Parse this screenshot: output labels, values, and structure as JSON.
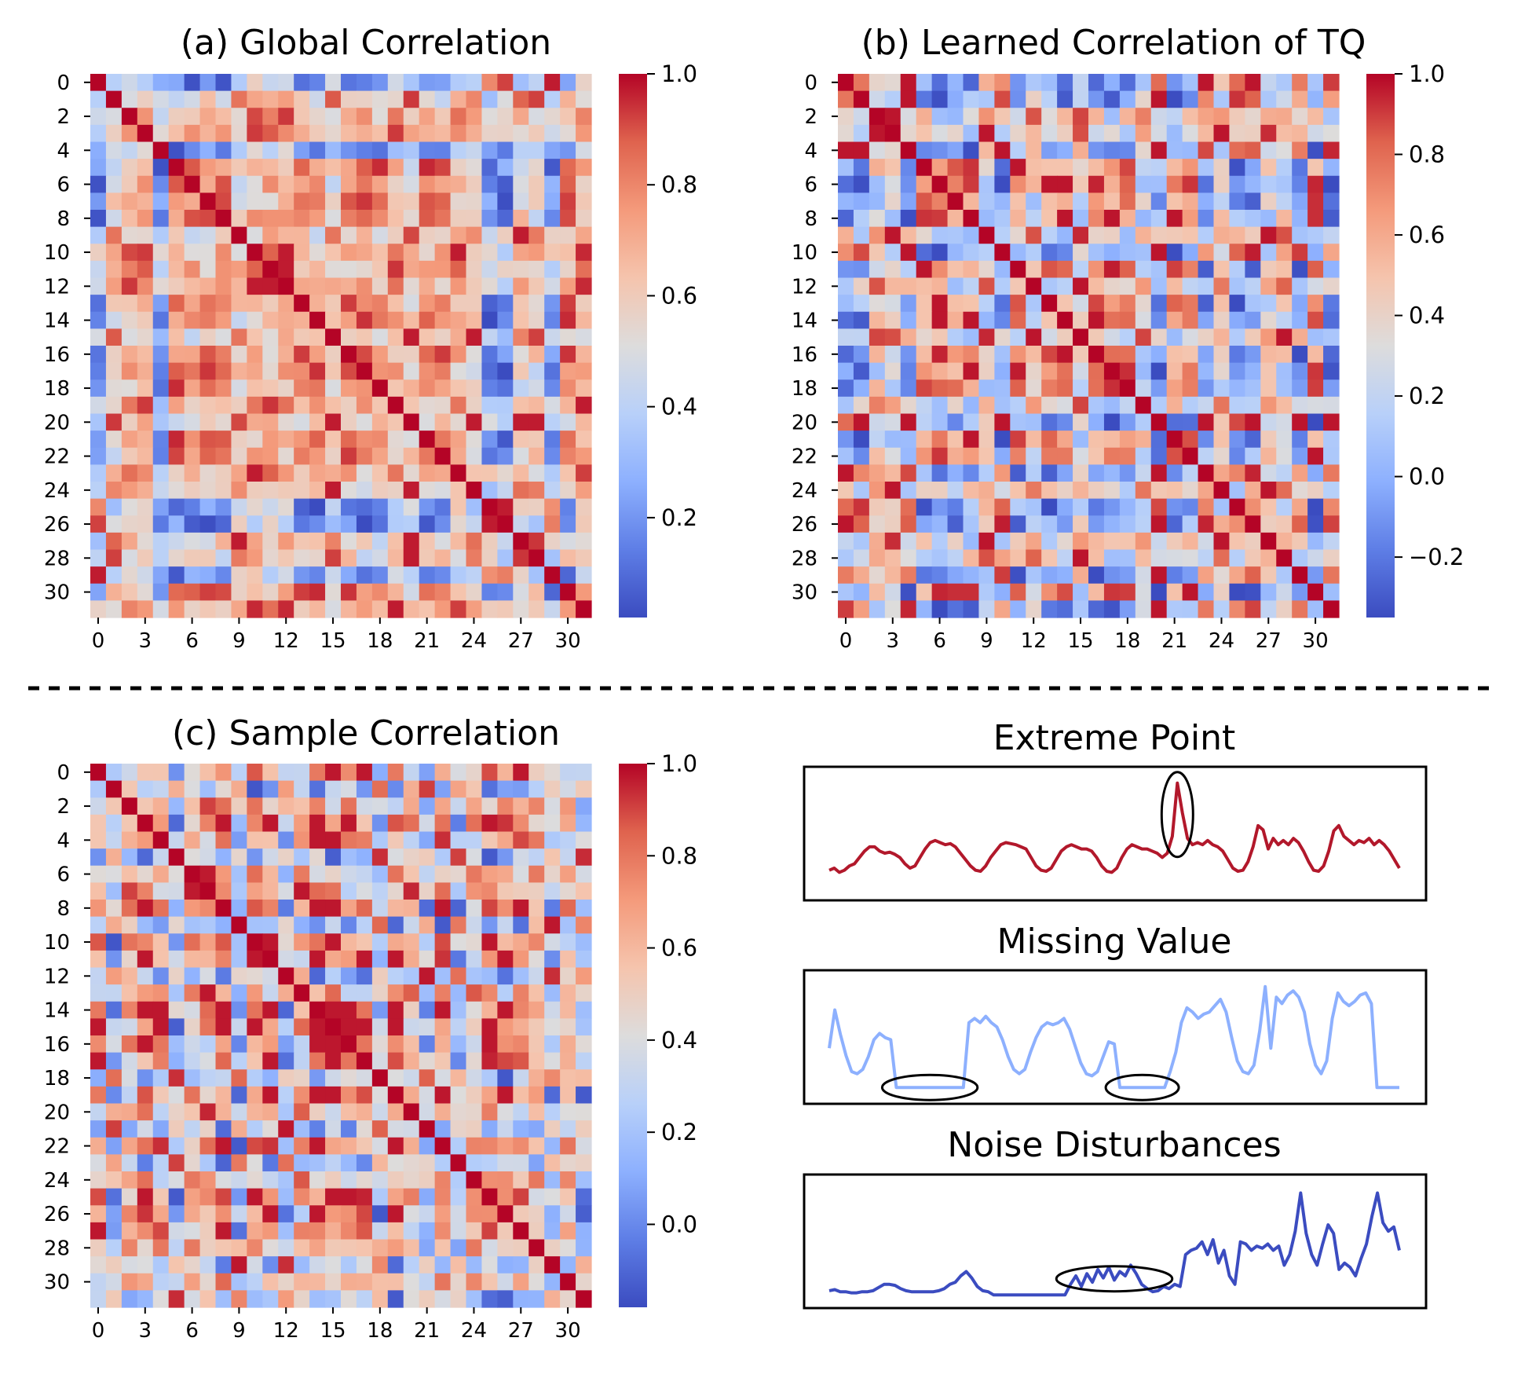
{
  "chart_data": [
    {
      "type": "heatmap",
      "title": "(a) Global Correlation",
      "size": 32,
      "x_ticks": [
        "0",
        "3",
        "6",
        "9",
        "12",
        "15",
        "18",
        "21",
        "24",
        "27",
        "30"
      ],
      "y_ticks": [
        "0",
        "2",
        "4",
        "6",
        "8",
        "10",
        "12",
        "14",
        "16",
        "18",
        "20",
        "22",
        "24",
        "26",
        "28",
        "30"
      ],
      "colormap": "coolwarm",
      "vmin": 0.02,
      "vmax": 1.0,
      "colorbar_ticks": [
        "1.0",
        "0.8",
        "0.6",
        "0.4",
        "0.2"
      ],
      "colorbar_tick_values": [
        1.0,
        0.8,
        0.6,
        0.4,
        0.2
      ],
      "diagonal": 1.0,
      "pattern": "block",
      "groups": [
        0,
        1,
        2,
        2,
        3,
        4,
        4,
        4,
        4,
        1,
        2,
        2,
        2,
        4,
        4,
        1,
        4,
        4,
        4,
        2,
        1,
        4,
        4,
        2,
        1,
        0,
        0,
        1,
        1,
        0,
        4,
        2
      ],
      "group_levels": [
        [
          0.9,
          0.45,
          0.5,
          0.2,
          0.15
        ],
        [
          0.45,
          0.9,
          0.62,
          0.4,
          0.55
        ],
        [
          0.5,
          0.62,
          0.9,
          0.42,
          0.65
        ],
        [
          0.2,
          0.4,
          0.42,
          0.9,
          0.15
        ],
        [
          0.15,
          0.55,
          0.65,
          0.15,
          0.82
        ]
      ],
      "noise": 0.14,
      "seed": 11
    },
    {
      "type": "heatmap",
      "title": "(b) Learned Correlation of TQ",
      "size": 32,
      "x_ticks": [
        "0",
        "3",
        "6",
        "9",
        "12",
        "15",
        "18",
        "21",
        "24",
        "27",
        "30"
      ],
      "y_ticks": [
        "0",
        "2",
        "4",
        "6",
        "8",
        "10",
        "12",
        "14",
        "16",
        "18",
        "20",
        "22",
        "24",
        "26",
        "28",
        "30"
      ],
      "colormap": "coolwarm",
      "vmin": -0.35,
      "vmax": 1.0,
      "colorbar_ticks": [
        "1.0",
        "0.8",
        "0.6",
        "0.4",
        "0.2",
        "0.0",
        "−0.2"
      ],
      "colorbar_tick_values": [
        1.0,
        0.8,
        0.6,
        0.4,
        0.2,
        0.0,
        -0.2
      ],
      "diagonal": 1.0,
      "pattern": "block",
      "groups": [
        0,
        0,
        1,
        1,
        0,
        2,
        2,
        2,
        2,
        1,
        0,
        2,
        1,
        2,
        2,
        1,
        2,
        2,
        2,
        1,
        0,
        2,
        2,
        0,
        1,
        0,
        0,
        1,
        1,
        0,
        2,
        0
      ],
      "group_levels": [
        [
          0.85,
          0.35,
          -0.1
        ],
        [
          0.35,
          0.8,
          0.3
        ],
        [
          -0.1,
          0.3,
          0.75
        ]
      ],
      "noise": 0.28,
      "seed": 23
    },
    {
      "type": "heatmap",
      "title": "(c) Sample Correlation",
      "size": 32,
      "x_ticks": [
        "0",
        "3",
        "6",
        "9",
        "12",
        "15",
        "18",
        "21",
        "24",
        "27",
        "30"
      ],
      "y_ticks": [
        "0",
        "2",
        "4",
        "6",
        "8",
        "10",
        "12",
        "14",
        "16",
        "18",
        "20",
        "22",
        "24",
        "26",
        "28",
        "30"
      ],
      "colormap": "coolwarm",
      "vmin": -0.18,
      "vmax": 1.0,
      "colorbar_ticks": [
        "1.0",
        "0.8",
        "0.6",
        "0.4",
        "0.2",
        "0.0"
      ],
      "colorbar_tick_values": [
        1.0,
        0.8,
        0.6,
        0.4,
        0.2,
        0.0
      ],
      "diagonal": 1.0,
      "pattern": "block",
      "groups": [
        0,
        1,
        2,
        0,
        0,
        1,
        2,
        2,
        0,
        1,
        0,
        0,
        1,
        2,
        0,
        0,
        0,
        0,
        1,
        0,
        2,
        1,
        0,
        1,
        2,
        0,
        0,
        0,
        2,
        1,
        2,
        1
      ],
      "group_levels": [
        [
          0.82,
          0.15,
          0.55
        ],
        [
          0.15,
          0.75,
          0.35
        ],
        [
          0.55,
          0.35,
          0.7
        ]
      ],
      "noise": 0.3,
      "seed": 37
    },
    {
      "type": "line",
      "title": "Extreme Point",
      "color": "#b2182b",
      "y": [
        0.18,
        0.2,
        0.16,
        0.18,
        0.22,
        0.24,
        0.3,
        0.36,
        0.4,
        0.4,
        0.36,
        0.34,
        0.35,
        0.33,
        0.3,
        0.24,
        0.2,
        0.22,
        0.3,
        0.38,
        0.44,
        0.46,
        0.44,
        0.42,
        0.43,
        0.4,
        0.34,
        0.28,
        0.22,
        0.18,
        0.17,
        0.22,
        0.3,
        0.36,
        0.42,
        0.44,
        0.43,
        0.42,
        0.4,
        0.38,
        0.3,
        0.22,
        0.18,
        0.17,
        0.2,
        0.28,
        0.36,
        0.4,
        0.42,
        0.4,
        0.38,
        0.38,
        0.36,
        0.3,
        0.22,
        0.17,
        0.16,
        0.2,
        0.3,
        0.38,
        0.42,
        0.4,
        0.38,
        0.38,
        0.36,
        0.34,
        0.3,
        0.34,
        0.5,
        1.0,
        0.72,
        0.48,
        0.42,
        0.44,
        0.42,
        0.46,
        0.42,
        0.4,
        0.36,
        0.28,
        0.2,
        0.17,
        0.18,
        0.26,
        0.4,
        0.6,
        0.56,
        0.38,
        0.48,
        0.42,
        0.46,
        0.42,
        0.48,
        0.44,
        0.36,
        0.26,
        0.18,
        0.17,
        0.22,
        0.36,
        0.55,
        0.6,
        0.5,
        0.46,
        0.42,
        0.46,
        0.44,
        0.48,
        0.42,
        0.46,
        0.42,
        0.36,
        0.28,
        0.2
      ],
      "ylim": [
        0,
        1.05
      ],
      "annotation": {
        "shape": "ellipse",
        "at_index": 69
      }
    },
    {
      "type": "line",
      "title": "Missing Value",
      "color": "#8db0fe",
      "y": [
        0.42,
        0.78,
        0.55,
        0.35,
        0.2,
        0.18,
        0.22,
        0.34,
        0.5,
        0.56,
        0.52,
        0.5,
        0.05,
        0.05,
        0.05,
        0.05,
        0.05,
        0.05,
        0.05,
        0.05,
        0.05,
        0.05,
        0.05,
        0.05,
        0.05,
        0.66,
        0.7,
        0.66,
        0.72,
        0.66,
        0.62,
        0.5,
        0.34,
        0.22,
        0.18,
        0.22,
        0.38,
        0.52,
        0.62,
        0.66,
        0.64,
        0.66,
        0.7,
        0.6,
        0.44,
        0.28,
        0.18,
        0.16,
        0.2,
        0.34,
        0.48,
        0.46,
        0.05,
        0.05,
        0.05,
        0.05,
        0.05,
        0.05,
        0.05,
        0.05,
        0.05,
        0.2,
        0.38,
        0.66,
        0.8,
        0.76,
        0.7,
        0.74,
        0.76,
        0.82,
        0.88,
        0.76,
        0.52,
        0.3,
        0.2,
        0.18,
        0.26,
        0.58,
        1.0,
        0.42,
        0.9,
        0.84,
        0.92,
        0.96,
        0.9,
        0.76,
        0.46,
        0.26,
        0.18,
        0.3,
        0.7,
        0.94,
        0.86,
        0.82,
        0.86,
        0.92,
        0.94,
        0.84,
        0.05,
        0.05,
        0.05,
        0.05,
        0.05
      ],
      "ylim": [
        0,
        1.05
      ],
      "annotations": [
        {
          "shape": "ellipse",
          "from_index": 12,
          "to_index": 24
        },
        {
          "shape": "ellipse",
          "from_index": 52,
          "to_index": 60
        }
      ]
    },
    {
      "type": "line",
      "title": "Noise Disturbances",
      "color": "#3b4cc0",
      "y": [
        0.06,
        0.07,
        0.05,
        0.05,
        0.04,
        0.04,
        0.05,
        0.05,
        0.06,
        0.09,
        0.12,
        0.12,
        0.11,
        0.08,
        0.06,
        0.05,
        0.05,
        0.05,
        0.05,
        0.05,
        0.06,
        0.08,
        0.12,
        0.14,
        0.2,
        0.24,
        0.18,
        0.1,
        0.06,
        0.05,
        0.02,
        0.02,
        0.02,
        0.02,
        0.02,
        0.02,
        0.02,
        0.02,
        0.02,
        0.02,
        0.02,
        0.02,
        0.02,
        0.02,
        0.12,
        0.2,
        0.1,
        0.22,
        0.14,
        0.26,
        0.18,
        0.28,
        0.16,
        0.24,
        0.2,
        0.3,
        0.22,
        0.12,
        0.08,
        0.05,
        0.06,
        0.1,
        0.08,
        0.12,
        0.1,
        0.4,
        0.44,
        0.46,
        0.52,
        0.4,
        0.54,
        0.32,
        0.44,
        0.2,
        0.12,
        0.52,
        0.5,
        0.44,
        0.48,
        0.46,
        0.5,
        0.44,
        0.48,
        0.3,
        0.4,
        0.62,
        0.98,
        0.6,
        0.4,
        0.3,
        0.5,
        0.68,
        0.6,
        0.26,
        0.32,
        0.28,
        0.2,
        0.36,
        0.5,
        0.76,
        0.98,
        0.7,
        0.62,
        0.66,
        0.44
      ],
      "ylim": [
        0,
        1.05
      ],
      "annotation": {
        "shape": "ellipse",
        "from_index": 44,
        "to_index": 60
      }
    }
  ]
}
